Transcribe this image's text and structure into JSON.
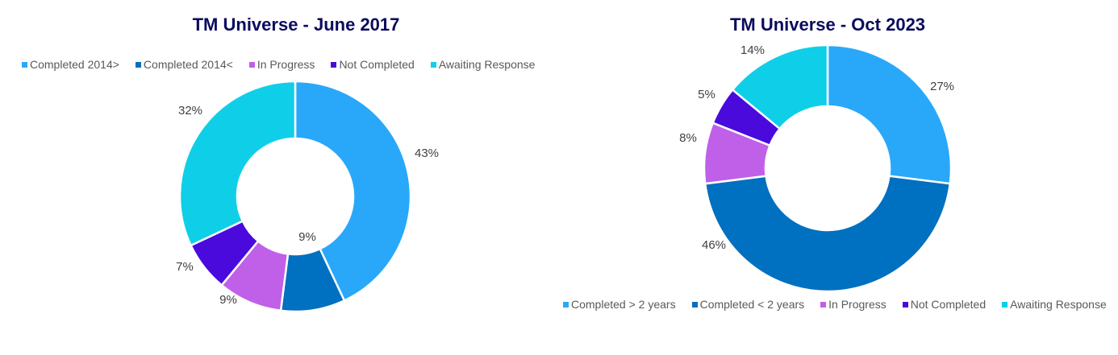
{
  "chart_data": [
    {
      "type": "pie",
      "title": "TM Universe - June 2017",
      "donut": true,
      "categories": [
        "Completed 2014>",
        "Completed 2014<",
        "In Progress",
        "Not Completed",
        "Awaiting Response"
      ],
      "values": [
        43,
        9,
        9,
        7,
        32
      ],
      "labels": [
        "43%",
        "9%",
        "9%",
        "7%",
        "32%"
      ],
      "colors": [
        "#29a8fa",
        "#0070c0",
        "#c060e8",
        "#4a0adc",
        "#0fcfe8"
      ],
      "legend_position": "top"
    },
    {
      "type": "pie",
      "title": "TM Universe - Oct 2023",
      "donut": true,
      "categories": [
        "Completed > 2 years",
        "Completed < 2 years",
        "In Progress",
        "Not Completed",
        "Awaiting Response"
      ],
      "values": [
        27,
        46,
        8,
        5,
        14
      ],
      "labels": [
        "27%",
        "46%",
        "8%",
        "5%",
        "14%"
      ],
      "colors": [
        "#29a8fa",
        "#0070c0",
        "#c060e8",
        "#4a0adc",
        "#0fcfe8"
      ],
      "legend_position": "bottom"
    }
  ],
  "left": {
    "title": "TM Universe - June 2017",
    "legend": [
      "Completed 2014>",
      "Completed 2014<",
      "In Progress",
      "Not Completed",
      "Awaiting Response"
    ]
  },
  "right": {
    "title": "TM Universe - Oct 2023",
    "legend": [
      "Completed > 2 years",
      "Completed < 2 years",
      "In Progress",
      "Not Completed",
      "Awaiting Response"
    ]
  }
}
